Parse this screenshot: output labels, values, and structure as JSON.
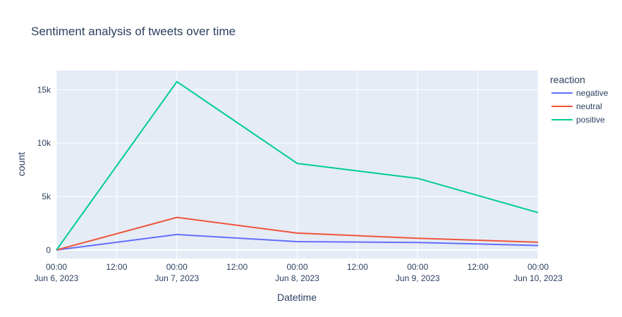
{
  "chart_data": {
    "type": "line",
    "title": "Sentiment analysis of tweets over time",
    "xlabel": "Datetime",
    "ylabel": "count",
    "legend_title": "reaction",
    "legend_placement": "right",
    "grid": true,
    "plot_background": "#e5ecf6",
    "x": [
      "2023-06-06 00:00",
      "2023-06-07 00:00",
      "2023-06-08 00:00",
      "2023-06-09 00:00",
      "2023-06-10 00:00"
    ],
    "xlim": [
      "2023-06-06 00:00",
      "2023-06-10 00:00"
    ],
    "ylim": [
      -800,
      16800
    ],
    "x_ticks": [
      {
        "hours": 0,
        "line1": "00:00",
        "line2": "Jun 6, 2023"
      },
      {
        "hours": 12,
        "line1": "12:00",
        "line2": ""
      },
      {
        "hours": 24,
        "line1": "00:00",
        "line2": "Jun 7, 2023"
      },
      {
        "hours": 36,
        "line1": "12:00",
        "line2": ""
      },
      {
        "hours": 48,
        "line1": "00:00",
        "line2": "Jun 8, 2023"
      },
      {
        "hours": 60,
        "line1": "12:00",
        "line2": ""
      },
      {
        "hours": 72,
        "line1": "00:00",
        "line2": "Jun 9, 2023"
      },
      {
        "hours": 84,
        "line1": "12:00",
        "line2": ""
      },
      {
        "hours": 96,
        "line1": "00:00",
        "line2": "Jun 10, 2023"
      }
    ],
    "y_ticks": [
      {
        "value": 0,
        "label": "0"
      },
      {
        "value": 5000,
        "label": "5k"
      },
      {
        "value": 10000,
        "label": "10k"
      },
      {
        "value": 15000,
        "label": "15k"
      }
    ],
    "series": [
      {
        "name": "negative",
        "color": "#636efa",
        "values": [
          0,
          1450,
          780,
          700,
          420
        ]
      },
      {
        "name": "neutral",
        "color": "#ef553b",
        "values": [
          0,
          3050,
          1580,
          1100,
          720
        ]
      },
      {
        "name": "positive",
        "color": "#00cc96",
        "values": [
          0,
          15750,
          8100,
          6700,
          3500
        ]
      }
    ]
  }
}
